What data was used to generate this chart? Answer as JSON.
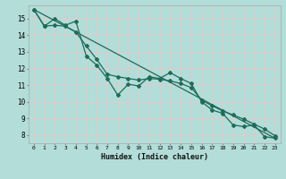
{
  "title": "",
  "xlabel": "Humidex (Indice chaleur)",
  "background_color": "#b2ddd8",
  "grid_color": "#e8c8c8",
  "line_color": "#1e6b5a",
  "xlim": [
    -0.5,
    23.5
  ],
  "ylim": [
    7.5,
    15.8
  ],
  "yticks": [
    8,
    9,
    10,
    11,
    12,
    13,
    14,
    15
  ],
  "xticks": [
    0,
    1,
    2,
    3,
    4,
    5,
    6,
    7,
    8,
    9,
    10,
    11,
    12,
    13,
    14,
    15,
    16,
    17,
    18,
    19,
    20,
    21,
    22,
    23
  ],
  "series1_x": [
    0,
    1,
    2,
    3,
    4,
    5,
    6,
    7,
    8,
    9,
    10,
    11,
    12,
    13,
    14,
    15,
    16,
    17,
    18,
    19,
    20,
    21,
    22,
    23
  ],
  "series1_y": [
    15.55,
    14.55,
    15.0,
    14.6,
    14.85,
    12.75,
    12.2,
    11.4,
    10.4,
    11.05,
    10.95,
    11.5,
    11.4,
    11.75,
    11.4,
    11.1,
    10.0,
    9.5,
    9.3,
    8.6,
    8.5,
    8.6,
    7.9,
    7.8
  ],
  "series2_x": [
    0,
    1,
    2,
    3,
    4,
    5,
    6,
    7,
    8,
    9,
    10,
    11,
    12,
    13,
    14,
    15,
    16,
    17,
    18,
    19,
    20,
    21,
    22,
    23
  ],
  "series2_y": [
    15.55,
    14.55,
    14.6,
    14.55,
    14.2,
    13.35,
    12.55,
    11.65,
    11.5,
    11.4,
    11.3,
    11.4,
    11.35,
    11.25,
    11.1,
    10.85,
    10.1,
    9.75,
    9.45,
    9.2,
    8.95,
    8.65,
    8.35,
    7.95
  ],
  "series3_x": [
    0,
    23
  ],
  "series3_y": [
    15.55,
    7.8
  ],
  "marker_size": 2.0,
  "line_width": 0.9
}
